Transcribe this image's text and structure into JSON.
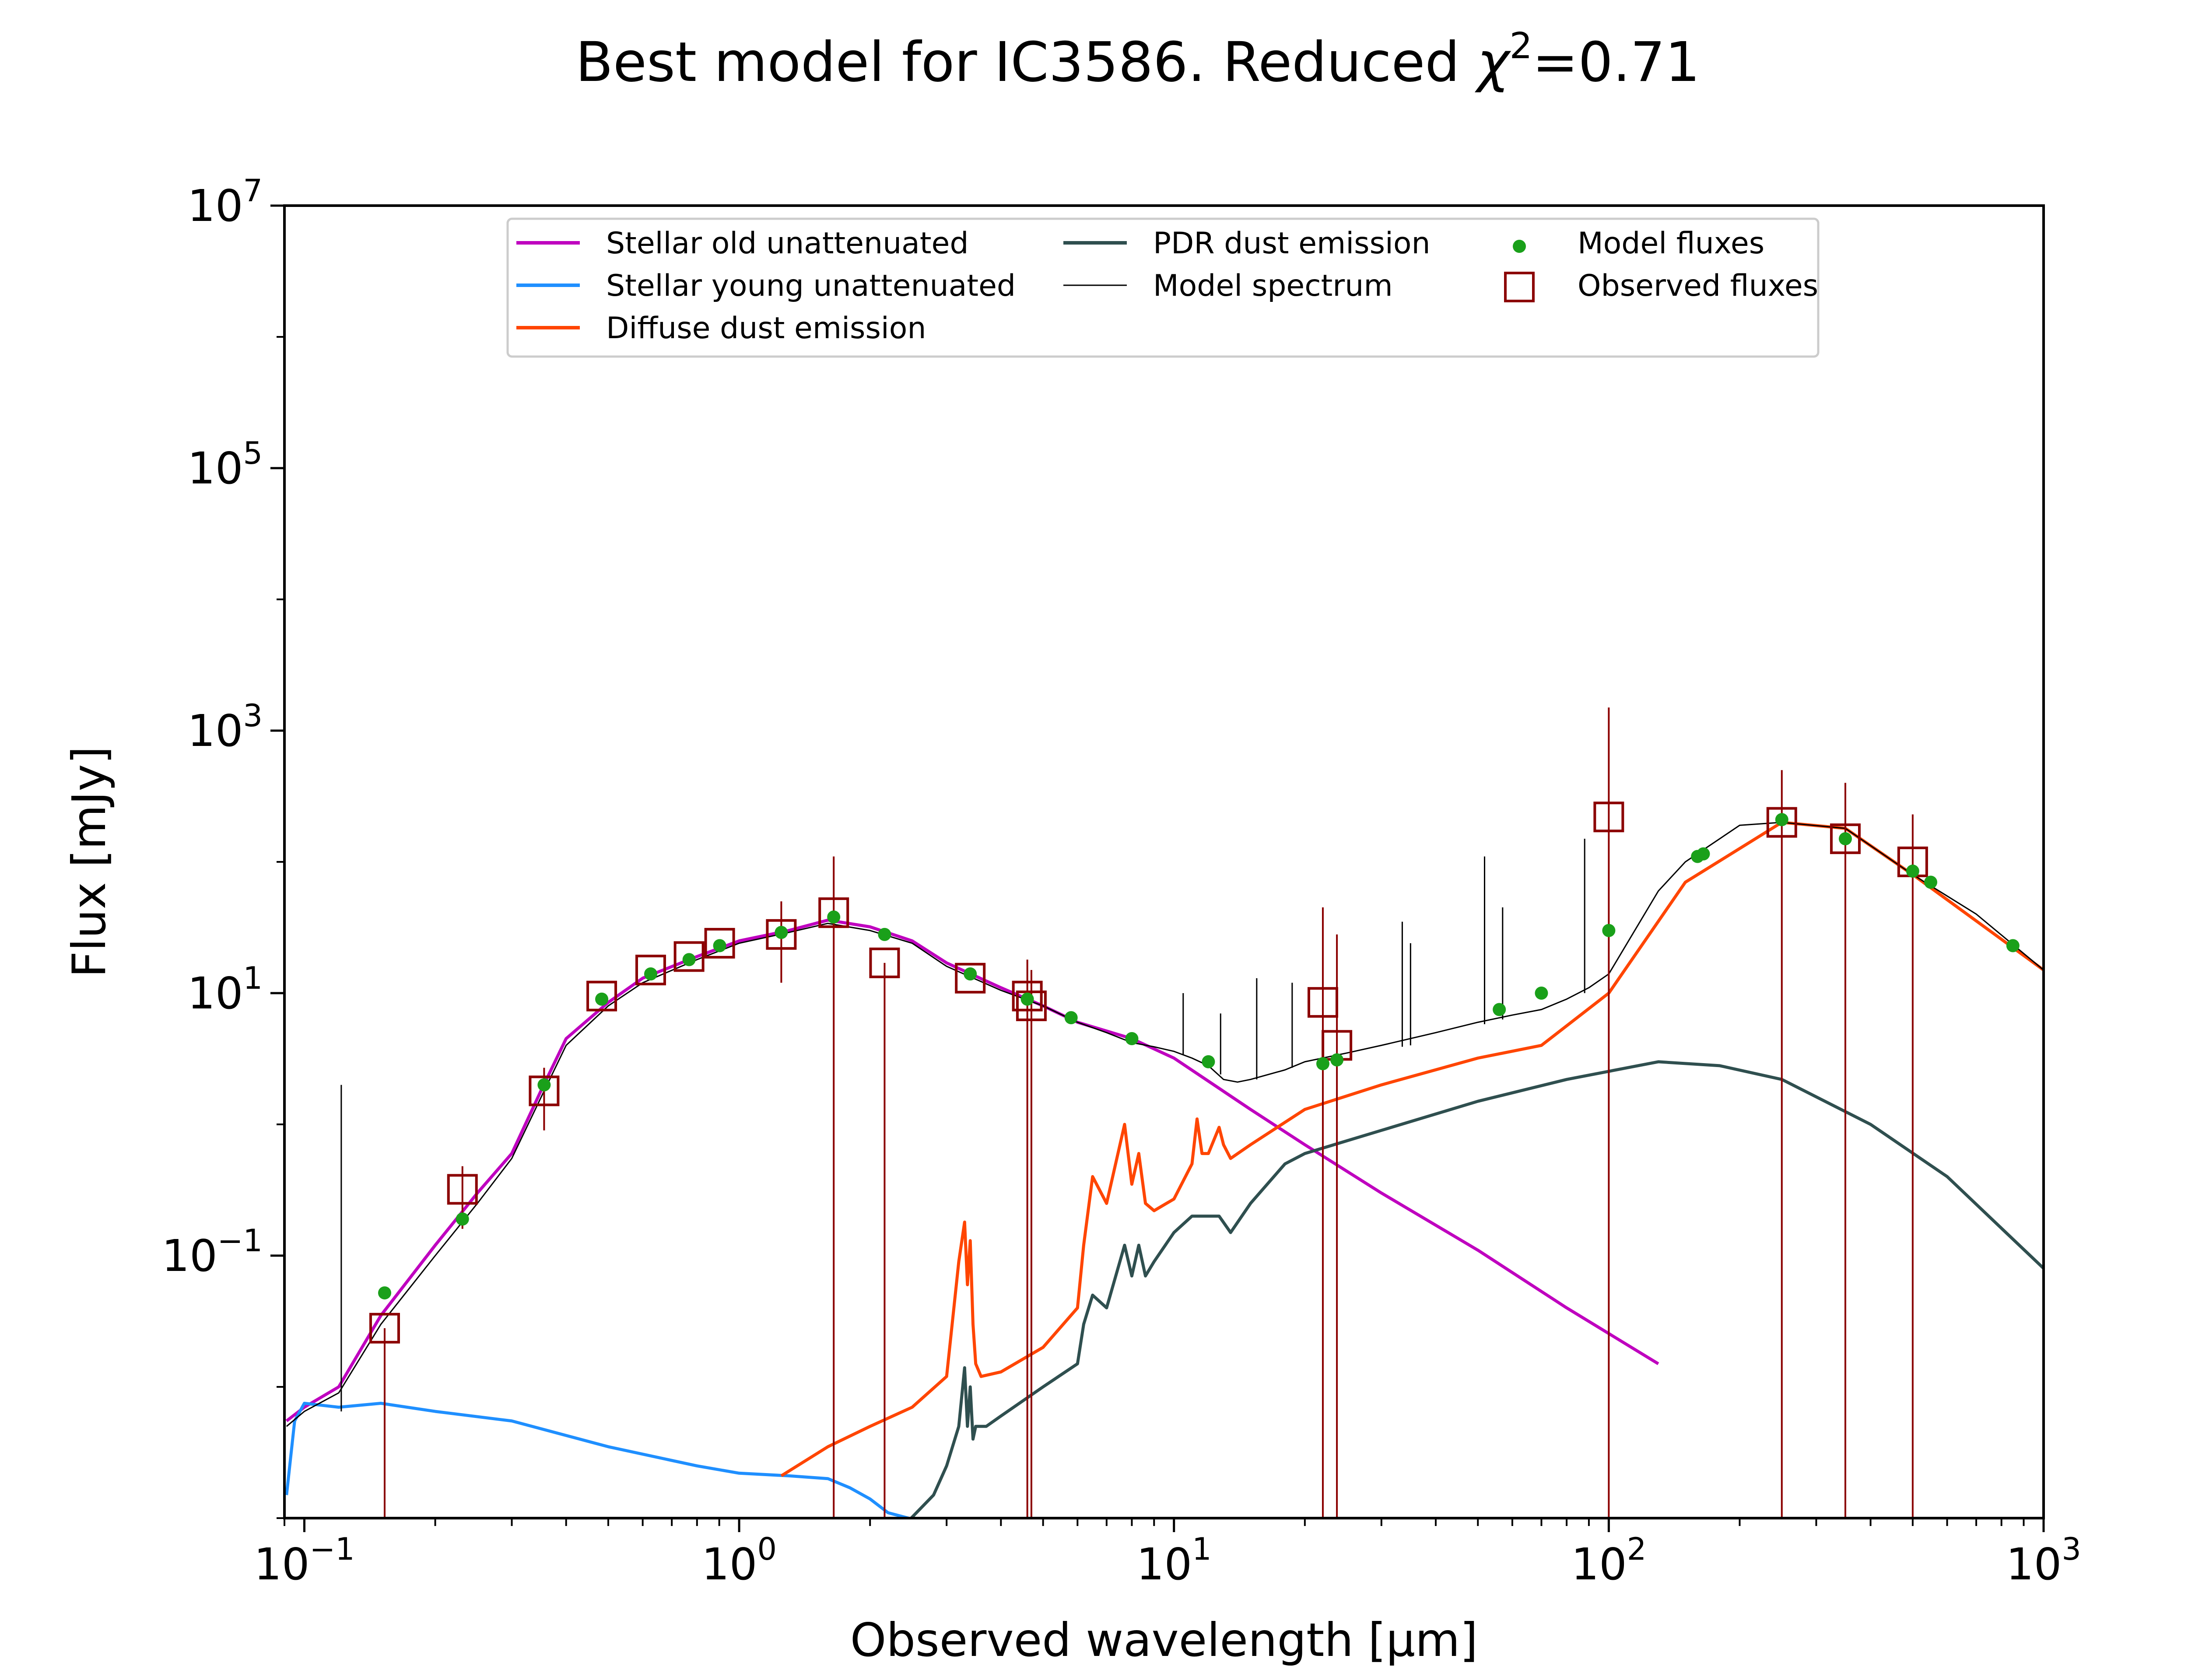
{
  "chart_data": {
    "type": "line",
    "title_main": "Best model for IC3586. Reduced ",
    "title_chi": "χ",
    "title_sup": "2",
    "title_tail": "=0.71",
    "xlabel": "Observed wavelength [μm]",
    "ylabel": "Flux [mJy]",
    "xscale": "log",
    "yscale": "log",
    "xlim": [
      0.09,
      1000
    ],
    "ylim": [
      0.001,
      10000000
    ],
    "grid": false,
    "legend_position": "top-center",
    "x_ticks": [
      {
        "value": 0.1,
        "base": "10",
        "exp": "−1"
      },
      {
        "value": 1,
        "base": "10",
        "exp": "0"
      },
      {
        "value": 10,
        "base": "10",
        "exp": "1"
      },
      {
        "value": 100,
        "base": "10",
        "exp": "2"
      },
      {
        "value": 1000,
        "base": "10",
        "exp": "3"
      }
    ],
    "y_ticks": [
      {
        "value": 0.1,
        "base": "10",
        "exp": "−1"
      },
      {
        "value": 10,
        "base": "10",
        "exp": "1"
      },
      {
        "value": 1000,
        "base": "10",
        "exp": "3"
      },
      {
        "value": 100000,
        "base": "10",
        "exp": "5"
      },
      {
        "value": 10000000,
        "base": "10",
        "exp": "7"
      }
    ],
    "series": [
      {
        "name": "Stellar old unattenuated",
        "color": "#bf00bf",
        "kind": "line",
        "x": [
          0.091,
          0.1,
          0.12,
          0.15,
          0.2,
          0.25,
          0.3,
          0.35,
          0.4,
          0.5,
          0.6,
          0.8,
          1.0,
          1.3,
          1.6,
          2.0,
          2.5,
          3.0,
          4.0,
          5.0,
          6.0,
          8.0,
          10,
          15,
          20,
          30,
          50,
          80,
          130
        ],
        "y": [
          0.0055,
          0.007,
          0.01,
          0.035,
          0.12,
          0.3,
          0.6,
          1.8,
          4.5,
          8.5,
          13,
          19,
          25,
          30,
          36,
          32,
          25,
          17,
          11,
          8,
          6,
          4.5,
          3.2,
          1.3,
          0.7,
          0.3,
          0.11,
          0.04,
          0.015
        ]
      },
      {
        "name": "Stellar young unattenuated",
        "color": "#1f8fff",
        "kind": "line",
        "x": [
          0.091,
          0.095,
          0.1,
          0.12,
          0.15,
          0.2,
          0.3,
          0.5,
          0.8,
          1.0,
          1.3,
          1.6,
          1.8,
          2.0,
          2.2,
          2.45,
          2.6
        ],
        "y": [
          0.0015,
          0.0055,
          0.0075,
          0.007,
          0.0075,
          0.0065,
          0.0055,
          0.0035,
          0.0025,
          0.0022,
          0.0021,
          0.002,
          0.0017,
          0.0014,
          0.0011,
          0.001,
          0.00095
        ]
      },
      {
        "name": "Diffuse dust emission",
        "color": "#ff4500",
        "kind": "line",
        "x": [
          1.25,
          1.6,
          2.0,
          2.5,
          3.0,
          3.2,
          3.3,
          3.35,
          3.4,
          3.45,
          3.5,
          3.6,
          4.0,
          5.0,
          6.0,
          6.2,
          6.5,
          7.0,
          7.7,
          8.0,
          8.3,
          8.6,
          9.0,
          10,
          11,
          11.3,
          11.6,
          12,
          12.7,
          13,
          13.5,
          15,
          20,
          30,
          50,
          70,
          100,
          150,
          250,
          350,
          500,
          1000
        ],
        "y": [
          0.0021,
          0.0035,
          0.005,
          0.007,
          0.012,
          0.09,
          0.18,
          0.06,
          0.13,
          0.03,
          0.015,
          0.012,
          0.013,
          0.02,
          0.04,
          0.12,
          0.4,
          0.25,
          1.0,
          0.35,
          0.6,
          0.25,
          0.22,
          0.27,
          0.5,
          1.1,
          0.6,
          0.6,
          0.95,
          0.7,
          0.55,
          0.7,
          1.3,
          2.0,
          3.2,
          4.0,
          10,
          70,
          200,
          180,
          80,
          15
        ]
      },
      {
        "name": "PDR dust emission",
        "color": "#2f4f4f",
        "kind": "line",
        "x": [
          2.45,
          2.8,
          3.0,
          3.2,
          3.3,
          3.35,
          3.4,
          3.45,
          3.5,
          3.7,
          4.0,
          5.0,
          6.0,
          6.2,
          6.5,
          7.0,
          7.7,
          8.0,
          8.3,
          8.6,
          9.0,
          10,
          11,
          12,
          12.7,
          13.5,
          15,
          18,
          20,
          30,
          50,
          80,
          130,
          180,
          250,
          400,
          600,
          1000
        ],
        "y": [
          0.00095,
          0.0015,
          0.0025,
          0.005,
          0.014,
          0.005,
          0.01,
          0.004,
          0.005,
          0.005,
          0.006,
          0.01,
          0.015,
          0.03,
          0.05,
          0.04,
          0.12,
          0.07,
          0.12,
          0.07,
          0.09,
          0.15,
          0.2,
          0.2,
          0.2,
          0.15,
          0.25,
          0.5,
          0.6,
          0.9,
          1.5,
          2.2,
          3.0,
          2.8,
          2.2,
          1.0,
          0.4,
          0.08
        ]
      },
      {
        "name": "Model spectrum",
        "color": "#000000",
        "kind": "line",
        "x": [
          0.091,
          0.1,
          0.12,
          0.15,
          0.2,
          0.25,
          0.3,
          0.35,
          0.4,
          0.5,
          0.6,
          0.8,
          1.0,
          1.3,
          1.6,
          2.0,
          2.5,
          3.0,
          4.0,
          5.0,
          6.0,
          7.0,
          8.0,
          9.0,
          10,
          11,
          12,
          13,
          14,
          15,
          18,
          20,
          25,
          30,
          40,
          50,
          60,
          70,
          80,
          90,
          100,
          130,
          150,
          200,
          250,
          350,
          500,
          700,
          1000
        ],
        "y": [
          0.005,
          0.0065,
          0.009,
          0.03,
          0.1,
          0.25,
          0.55,
          1.6,
          4.0,
          8.0,
          12,
          18,
          24,
          29,
          34,
          30,
          24,
          16,
          10.5,
          8,
          6,
          5,
          4.2,
          3.9,
          3.6,
          3.2,
          2.8,
          2.2,
          2.1,
          2.2,
          2.6,
          3.0,
          3.5,
          4.0,
          5.0,
          6.0,
          6.8,
          7.5,
          9.0,
          11,
          14,
          60,
          100,
          190,
          200,
          180,
          80,
          40,
          15
        ]
      },
      {
        "name": "Model spectrum lines",
        "kind": "spikes",
        "color": "#000000",
        "x": [
          0.1216,
          10.5,
          12.8,
          15.5,
          18.7,
          33.5,
          35,
          51.8,
          57,
          88,
          100
        ],
        "y_base": [
          0.0065,
          3.4,
          2.4,
          2.2,
          2.7,
          3.9,
          4.0,
          5.8,
          6.3,
          10,
          13
        ],
        "y_top": [
          2.0,
          10,
          7,
          13,
          12,
          35,
          24,
          110,
          45,
          150,
          130
        ]
      },
      {
        "name": "Model fluxes",
        "kind": "points",
        "color": "#1aa01a",
        "x": [
          0.153,
          0.231,
          0.356,
          0.483,
          0.626,
          0.767,
          0.902,
          1.25,
          1.65,
          2.16,
          3.4,
          4.6,
          5.8,
          8.0,
          12,
          22,
          23.7,
          56,
          70,
          100,
          160,
          165,
          250,
          350,
          500,
          550,
          850
        ],
        "y": [
          0.052,
          0.19,
          2.0,
          9.0,
          14,
          18,
          23,
          29,
          38,
          28,
          14,
          9,
          6.5,
          4.5,
          3.0,
          2.9,
          3.1,
          7.5,
          10,
          30,
          110,
          115,
          210,
          150,
          85,
          70,
          23
        ]
      },
      {
        "name": "Observed fluxes",
        "kind": "squares",
        "color": "#8b0000",
        "x": [
          0.153,
          0.231,
          0.356,
          0.483,
          0.626,
          0.767,
          0.902,
          1.25,
          1.65,
          2.16,
          3.4,
          4.6,
          4.7,
          22,
          23.7,
          100,
          250,
          350,
          500
        ],
        "y": [
          0.028,
          0.32,
          1.8,
          9.5,
          15,
          19,
          24,
          28,
          41,
          17,
          13,
          9.5,
          8.0,
          8.5,
          4.0,
          220,
          200,
          150,
          100
        ],
        "err_low": [
          0.001,
          0.16,
          0.9,
          9.5,
          15,
          19,
          24,
          12,
          0.001,
          0.001,
          13,
          0.001,
          0.001,
          0.001,
          0.001,
          0.001,
          0.001,
          0.001,
          0.001
        ],
        "err_high": [
          0.028,
          0.48,
          2.7,
          9.5,
          15,
          19,
          24,
          50,
          110,
          17,
          13,
          18,
          15,
          45,
          28,
          1500,
          500,
          400,
          230
        ]
      }
    ],
    "legend": [
      {
        "label": "Stellar old unattenuated",
        "color": "#bf00bf",
        "kind": "line"
      },
      {
        "label": "Stellar young unattenuated",
        "color": "#1f8fff",
        "kind": "line"
      },
      {
        "label": "Diffuse dust emission",
        "color": "#ff4500",
        "kind": "line"
      },
      {
        "label": "PDR dust emission",
        "color": "#2f4f4f",
        "kind": "line"
      },
      {
        "label": "Model spectrum",
        "color": "#000000",
        "kind": "thinline"
      },
      {
        "label": "Model fluxes",
        "color": "#1aa01a",
        "kind": "dot"
      },
      {
        "label": "Observed fluxes",
        "color": "#8b0000",
        "kind": "square"
      }
    ]
  }
}
